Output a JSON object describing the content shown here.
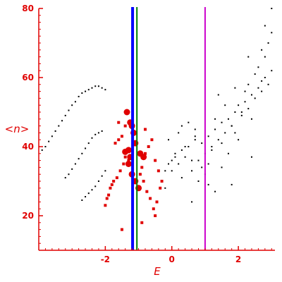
{
  "chart_data": {
    "type": "scatter",
    "title": "",
    "xlabel": "E",
    "ylabel": "<n>",
    "xlim": [
      -4.0,
      3.1
    ],
    "ylim": [
      10,
      80
    ],
    "xticks": [
      -2,
      0,
      2
    ],
    "yticks": [
      20,
      40,
      60,
      80
    ],
    "grid": false,
    "colors": {
      "axis": "#e00000",
      "small_markers": "#e00000",
      "large_markers": "#e00000",
      "background_points": "#000000",
      "vline_blue": "#0000ff",
      "vline_green": "#008000",
      "vline_magenta": "#cc00cc"
    },
    "vertical_lines": [
      {
        "x": -1.18,
        "color": "#0000ff"
      },
      {
        "x": -1.05,
        "color": "#008000"
      },
      {
        "x": 1.0,
        "color": "#cc00cc"
      }
    ],
    "series": [
      {
        "marker": "dot",
        "color": "#000000",
        "x": [
          -3.9,
          -3.8,
          -3.7,
          -3.6,
          -3.5,
          -3.4,
          -3.3,
          -3.2,
          -3.1,
          -3.0,
          -2.9,
          -2.8,
          -2.7,
          -2.6,
          -2.5,
          -2.4,
          -2.3,
          -2.2,
          -2.1,
          -2.0,
          -3.2,
          -3.1,
          -3.0,
          -2.9,
          -2.8,
          -2.7,
          -2.6,
          -2.5,
          -2.4,
          -2.3,
          -2.2,
          -2.1,
          -2.7,
          -2.6,
          -2.5,
          -2.4,
          -2.3,
          -2.2,
          -2.1,
          -2.0,
          -0.3,
          -0.2,
          -0.1,
          0.0,
          0.1,
          0.2,
          0.3,
          0.4,
          0.5,
          0.6,
          0.7,
          0.8,
          0.9,
          1.0,
          1.1,
          1.2,
          1.3,
          1.4,
          1.5,
          1.6,
          1.7,
          1.8,
          1.9,
          2.0,
          2.1,
          2.2,
          2.3,
          2.4,
          2.5,
          2.6,
          2.7,
          2.8,
          2.9,
          3.0,
          0.2,
          0.5,
          0.8,
          1.1,
          1.4,
          1.7,
          2.0,
          2.3,
          2.6,
          2.9,
          -0.2,
          0.1,
          0.4,
          0.7,
          1.0,
          1.3,
          1.6,
          1.9,
          2.2,
          2.5,
          2.8,
          0.0,
          0.3,
          0.6,
          0.9,
          1.2,
          1.5,
          1.8,
          2.1,
          2.4,
          2.7,
          3.0,
          0.6,
          1.3,
          1.8,
          2.4,
          2.8,
          3.0,
          -0.1,
          0.3,
          0.7,
          1.1,
          1.5,
          1.9,
          2.3,
          2.7
        ],
        "y": [
          39,
          40,
          41.5,
          43,
          44.5,
          46,
          47.5,
          49,
          50.5,
          52,
          53,
          54.5,
          55.5,
          56,
          56.5,
          57,
          57.5,
          57.5,
          57,
          56.5,
          31,
          32,
          33.5,
          35,
          36.5,
          38,
          39.5,
          41,
          42.5,
          43.5,
          44,
          44.5,
          24.5,
          25.5,
          26.5,
          27.5,
          28.5,
          30,
          31.5,
          33,
          30,
          33,
          35,
          36,
          38,
          35,
          39,
          37,
          40,
          33,
          42,
          36,
          41,
          38,
          43,
          40,
          45,
          42,
          47,
          44,
          48,
          46,
          50,
          52,
          49,
          53,
          51,
          55,
          54,
          57,
          56,
          60,
          58,
          62,
          44,
          47,
          30,
          35,
          55,
          38,
          42,
          58,
          63,
          70,
          28,
          37,
          40,
          45,
          32,
          48,
          52,
          44,
          56,
          61,
          66,
          33,
          31,
          36,
          34,
          39,
          41,
          46,
          50,
          48,
          59,
          73,
          24,
          27,
          29,
          37,
          75,
          80,
          42,
          46,
          43,
          29,
          34,
          57,
          66,
          68
        ]
      },
      {
        "marker": "small-square",
        "color": "#e00000",
        "x": [
          -2.0,
          -1.95,
          -1.85,
          -1.75,
          -1.65,
          -1.55,
          -1.45,
          -1.4,
          -1.7,
          -1.6,
          -1.5,
          -1.35,
          -1.3,
          -1.9,
          -1.8,
          -0.95,
          -0.9,
          -0.85,
          -0.8,
          -0.7,
          -0.6,
          -0.5,
          -0.4,
          -0.3,
          -0.75,
          -0.65,
          -0.55,
          -0.45,
          -0.35,
          -1.5,
          -0.5,
          -0.9,
          -0.8,
          -1.6,
          -1.4
        ],
        "y": [
          23,
          25,
          28,
          30,
          31,
          33,
          35,
          37,
          41,
          42,
          43,
          39,
          36,
          26,
          29,
          32,
          34,
          30,
          38,
          40,
          42,
          36,
          33,
          30,
          27,
          25,
          22,
          24,
          28,
          16,
          20,
          18,
          45,
          47,
          46
        ]
      },
      {
        "marker": "large-circle",
        "color": "#e00000",
        "x": [
          -1.4,
          -1.3,
          -1.25,
          -1.2,
          -1.15,
          -1.3,
          -1.2,
          -1.1,
          -0.95,
          -0.85,
          -1.35,
          -1.0,
          -1.25,
          -1.1
        ],
        "y": [
          38.5,
          39,
          37,
          46,
          44,
          35,
          32,
          30,
          38,
          37,
          50,
          28,
          47,
          41
        ]
      }
    ]
  }
}
